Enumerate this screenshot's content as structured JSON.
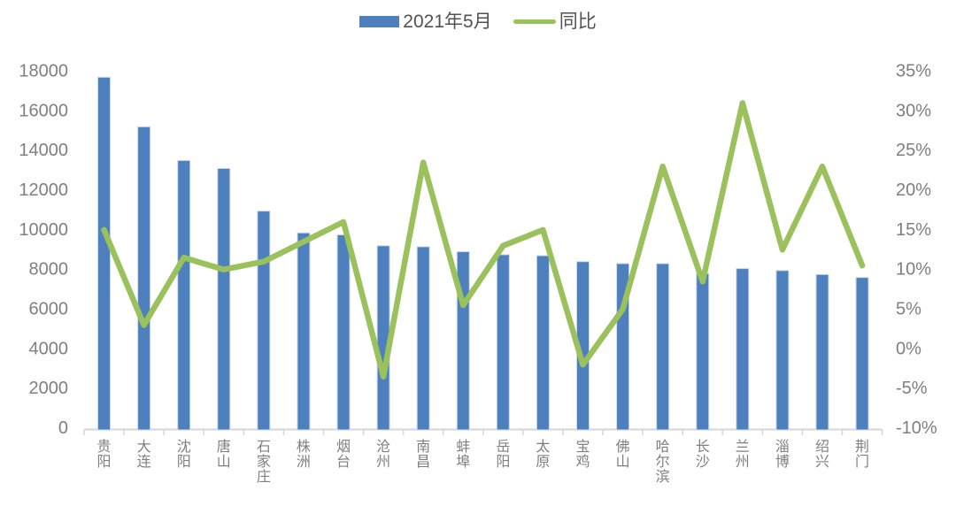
{
  "legend": {
    "items": [
      {
        "label": "2021年5月",
        "series_type": "bar",
        "color": "#4e80bd"
      },
      {
        "label": "同比",
        "series_type": "line",
        "color": "#9bc15c"
      }
    ]
  },
  "chart_data": {
    "type": "bar",
    "subtype": "combo bar+line, dual y-axis",
    "title": "",
    "categories": [
      "贵阳",
      "大连",
      "沈阳",
      "唐山",
      "石家庄",
      "株洲",
      "烟台",
      "沧州",
      "南昌",
      "蚌埠",
      "岳阳",
      "太原",
      "宝鸡",
      "佛山",
      "哈尔滨",
      "长沙",
      "兰州",
      "淄博",
      "绍兴",
      "荆门"
    ],
    "series": [
      {
        "name": "2021年5月",
        "type": "bar",
        "axis": "left",
        "color": "#4e80bd",
        "values": [
          17700,
          15200,
          13500,
          13100,
          10950,
          9850,
          9750,
          9200,
          9150,
          8900,
          8750,
          8700,
          8400,
          8300,
          8300,
          7800,
          8050,
          7950,
          7750,
          7600
        ]
      },
      {
        "name": "同比",
        "type": "line",
        "axis": "right",
        "unit": "%",
        "color": "#9bc15c",
        "values": [
          15,
          3,
          11.5,
          10,
          11,
          13.5,
          16,
          -3.5,
          23.5,
          5.5,
          13,
          15,
          -2,
          5,
          23,
          8.5,
          31,
          12.5,
          23,
          10.5
        ]
      }
    ],
    "left_axis": {
      "min": 0,
      "max": 18000,
      "step": 2000,
      "tick_values": [
        18000,
        16000,
        14000,
        12000,
        10000,
        8000,
        6000,
        4000,
        2000,
        0
      ],
      "tick_labels": [
        "18000",
        "16000",
        "14000",
        "12000",
        "10000",
        "8000",
        "6000",
        "4000",
        "2000",
        "0"
      ]
    },
    "right_axis": {
      "min": -10,
      "max": 35,
      "step": 5,
      "tick_values": [
        35,
        30,
        25,
        20,
        15,
        10,
        5,
        0,
        -5,
        -10
      ],
      "tick_labels": [
        "35%",
        "30%",
        "25%",
        "20%",
        "15%",
        "10%",
        "5%",
        "0%",
        "-5%",
        "-10%"
      ]
    },
    "grid": false,
    "legend_position": "top-center",
    "plot_background": "#ffffff"
  },
  "colors": {
    "bar": "#4e80bd",
    "bar_border": "#c9d9ee",
    "line": "#9bc15c",
    "axis_line": "#d6d6d6",
    "axis_text": "#7f7f7f",
    "legend_text": "#525252",
    "background": "#ffffff"
  }
}
